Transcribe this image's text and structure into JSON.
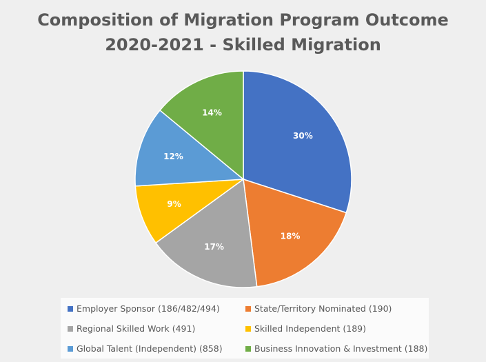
{
  "chart_data": {
    "type": "pie",
    "title": [
      "Composition of Migration Program Outcome",
      "2020-2021 - Skilled Migration"
    ],
    "start_angle": "top, clockwise",
    "slices": [
      {
        "name": "Employer Sponsor (186/482/494)",
        "value": 30,
        "label": "30%",
        "color": "#4472c4"
      },
      {
        "name": "State/Territory Nominated (190)",
        "value": 18,
        "label": "18%",
        "color": "#ed7d31"
      },
      {
        "name": "Regional Skilled Work (491)",
        "value": 17,
        "label": "17%",
        "color": "#a5a5a5"
      },
      {
        "name": "Skilled Independent (189)",
        "value": 9,
        "label": "9%",
        "color": "#ffc000"
      },
      {
        "name": "Global Talent (Independent) (858)",
        "value": 12,
        "label": "12%",
        "color": "#5b9bd5"
      },
      {
        "name": "Business Innovation & Investment (188)",
        "value": 14,
        "label": "14%",
        "color": "#70ad47"
      }
    ],
    "legend_position": "bottom"
  }
}
